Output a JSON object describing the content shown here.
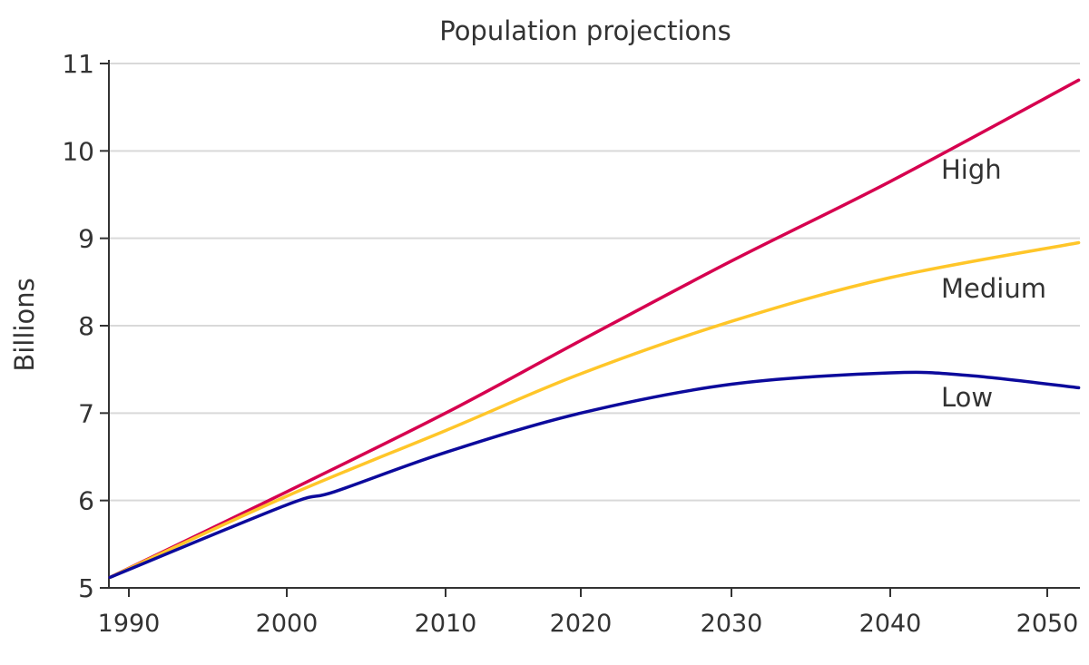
{
  "chart_data": {
    "type": "line",
    "title": "Population projections",
    "xlabel": "",
    "ylabel": "Billions",
    "xlim": [
      1988.8,
      2052
    ],
    "ylim": [
      5,
      11
    ],
    "x_ticks": [
      1990,
      2000,
      2010,
      2020,
      2030,
      2040,
      2050
    ],
    "y_ticks": [
      5,
      6,
      7,
      8,
      9,
      10,
      11
    ],
    "grid": "horizontal",
    "legend": "inline labels at right end of lines",
    "series": [
      {
        "name": "High",
        "color": "#d6004f",
        "x": [
          1988.8,
          2000,
          2010,
          2020,
          2030,
          2040,
          2052
        ],
        "y": [
          5.12,
          6.1,
          7.0,
          7.83,
          8.74,
          9.65,
          10.81
        ]
      },
      {
        "name": "Medium",
        "color": "#ffc629",
        "x": [
          1988.8,
          2000,
          2010,
          2020,
          2030,
          2040,
          2052
        ],
        "y": [
          5.12,
          6.05,
          6.8,
          7.45,
          8.05,
          8.55,
          8.95
        ]
      },
      {
        "name": "Low",
        "color": "#0c0a9c",
        "x": [
          1988.8,
          2000,
          2003,
          2010,
          2020,
          2030,
          2040,
          2045,
          2052
        ],
        "y": [
          5.12,
          5.95,
          6.1,
          6.55,
          7.0,
          7.33,
          7.46,
          7.43,
          7.29
        ]
      }
    ]
  }
}
